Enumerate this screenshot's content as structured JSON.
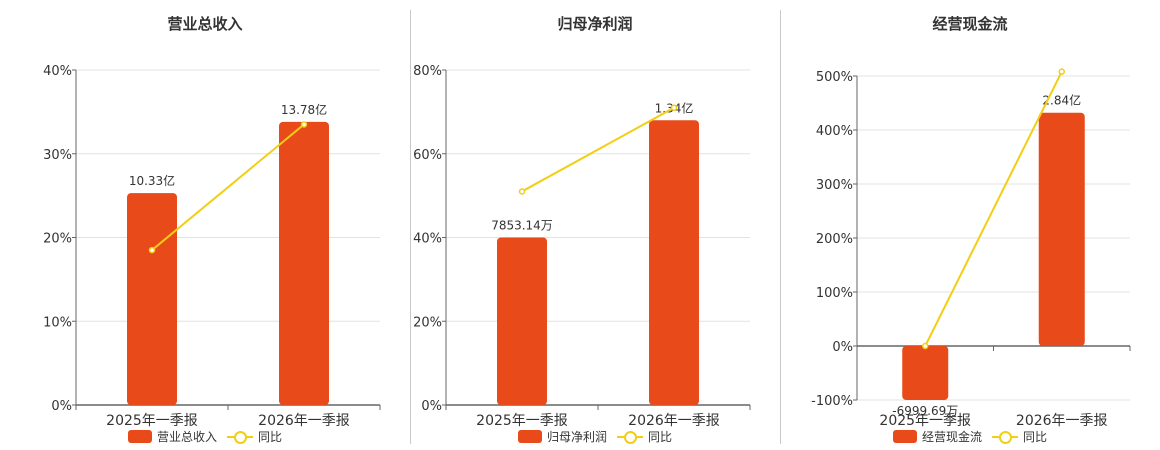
{
  "colors": {
    "bar": "#E84A19",
    "line": "#F2CE14",
    "grid": "#E3E3E3",
    "axis": "#666666",
    "text": "#333333"
  },
  "legend": {
    "yoy": "同比"
  },
  "chart_data": [
    {
      "type": "bar",
      "title": "营业总收入",
      "categories": [
        "2025年一季报",
        "2026年一季报"
      ],
      "series": [
        {
          "name": "营业总收入",
          "type": "bar",
          "values": [
            25.3,
            33.8
          ],
          "labels": [
            "10.33亿",
            "13.78亿"
          ]
        },
        {
          "name": "同比",
          "type": "line",
          "values": [
            18.5,
            33.5
          ]
        }
      ],
      "yaxis": {
        "ticks": [
          "0%",
          "10%",
          "20%",
          "30%",
          "40%"
        ],
        "min": 0,
        "max": 40
      }
    },
    {
      "type": "bar",
      "title": "归母净利润",
      "categories": [
        "2025年一季报",
        "2026年一季报"
      ],
      "series": [
        {
          "name": "归母净利润",
          "type": "bar",
          "values": [
            40,
            68
          ],
          "labels": [
            "7853.14万",
            "1.34亿"
          ]
        },
        {
          "name": "同比",
          "type": "line",
          "values": [
            51,
            71
          ]
        }
      ],
      "yaxis": {
        "ticks": [
          "0%",
          "20%",
          "40%",
          "60%",
          "80%"
        ],
        "min": 0,
        "max": 80
      }
    },
    {
      "type": "bar",
      "title": "经营现金流",
      "categories": [
        "2025年一季报",
        "2026年一季报"
      ],
      "series": [
        {
          "name": "经营现金流",
          "type": "bar",
          "values": [
            -100,
            432
          ],
          "labels": [
            "-6999.69万",
            "2.84亿"
          ]
        },
        {
          "name": "同比",
          "type": "line",
          "values": [
            0,
            508
          ]
        }
      ],
      "yaxis": {
        "ticks": [
          "-100%",
          "0%",
          "100%",
          "200%",
          "300%",
          "400%",
          "500%"
        ],
        "min": -100,
        "max": 500
      }
    }
  ]
}
